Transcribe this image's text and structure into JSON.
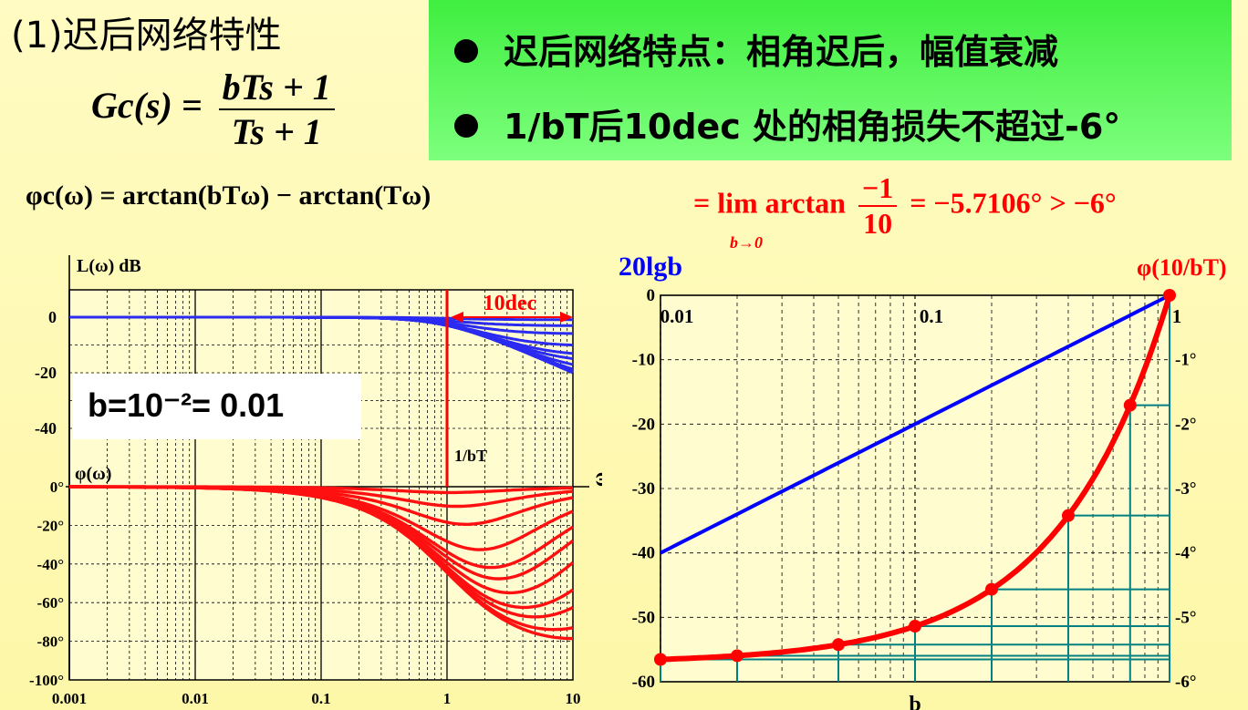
{
  "section_title": "(1)迟后网络特性",
  "gc_formula": {
    "lhs": "Gc(s) =",
    "numerator": "bTs + 1",
    "denominator": "Ts + 1"
  },
  "bullets": [
    "迟后网络特点：相角迟后，幅值衰减",
    "1/bT后10dec 处的相角损失不超过-6°"
  ],
  "phase_formula": "φc(ω) = arctan(bTω) − arctan(Tω)",
  "limit_formula": {
    "prefix": "= lim arctan",
    "sub": "b→0",
    "frac_num": "−1",
    "frac_den": "10",
    "suffix": "= −5.7106° > −6°"
  },
  "b_label": "b=10⁻²= 0.01",
  "left_chart": {
    "mag_ylabel": "L(ω)  dB",
    "phase_ylabel": "φ(ω)",
    "xlabel": "ω",
    "corner_label": "1/bT",
    "dec_label": "10dec",
    "x_ticks": [
      "0.001",
      "0.01",
      "0.1",
      "1",
      "10"
    ],
    "mag_ticks": [
      "0",
      "-20",
      "-40"
    ],
    "phase_ticks": [
      "0°",
      "-20°",
      "-40°",
      "-60°",
      "-80°",
      "-100°"
    ]
  },
  "chart_data": [
    {
      "type": "line",
      "xscale": "log",
      "x_range": [
        0.001,
        10
      ],
      "title": "",
      "xlabel": "ω",
      "ylabel": "L(ω) dB",
      "y_range": [
        -40,
        0
      ],
      "b_values": [
        0.01,
        0.02,
        0.04,
        0.06,
        0.1,
        0.15,
        0.2,
        0.3,
        0.5,
        0.7,
        0.9
      ],
      "T": 1
    },
    {
      "type": "line",
      "xscale": "log",
      "x_range": [
        0.001,
        10
      ],
      "xlabel": "ω",
      "ylabel": "φ(ω)",
      "y_range": [
        -100,
        0
      ],
      "b_values": [
        0.01,
        0.02,
        0.04,
        0.06,
        0.1,
        0.15,
        0.2,
        0.3,
        0.5,
        0.7,
        0.9
      ],
      "T": 1
    },
    {
      "type": "line",
      "xscale": "log",
      "x_range": [
        0.01,
        1
      ],
      "xlabel": "b",
      "y_range": [
        -60,
        0
      ],
      "grid": true,
      "series": [
        {
          "name": "20lgb",
          "axis": "left",
          "function": "20*log10(b)"
        },
        {
          "name": "φ(10/bT)",
          "axis": "right",
          "function": "atan(10)-atan(10/b)",
          "markers_b": [
            0.01,
            0.02,
            0.05,
            0.1,
            0.2,
            0.4,
            0.7,
            1
          ]
        }
      ],
      "left_ticks": [
        "0",
        "-10",
        "-20",
        "-30",
        "-40",
        "-50",
        "-60"
      ],
      "right_ticks": [
        "-1°",
        "-2°",
        "-3°",
        "-4°",
        "-5°",
        "-6°"
      ],
      "x_ticks": [
        "0.01",
        "0.1",
        "1"
      ]
    }
  ],
  "colors": {
    "mag": "#2a2af0",
    "phase": "#ff1010",
    "right_line": "#0000ff",
    "grid_teal": "#008080",
    "green_box": "#40ee40"
  }
}
